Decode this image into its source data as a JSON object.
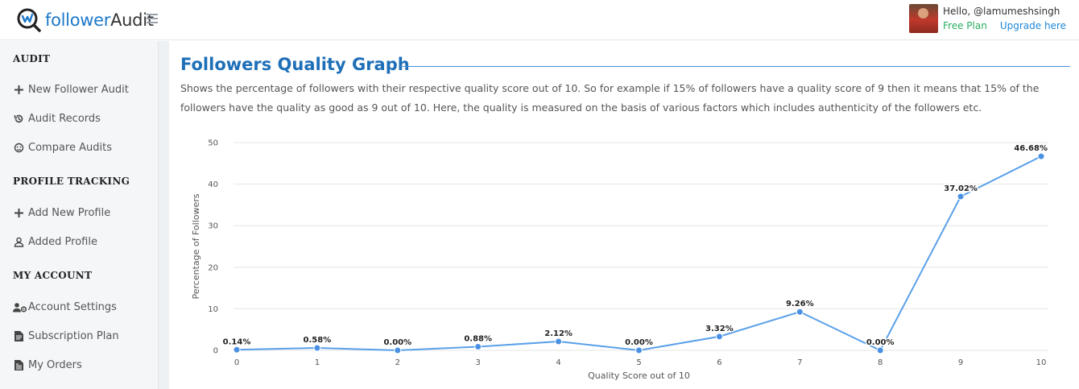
{
  "header": {
    "logo_text_part1": "follower",
    "logo_text_part2": "Audit",
    "greeting": "Hello, @lamumeshsingh",
    "plan": "Free Plan",
    "upgrade": "Upgrade here"
  },
  "sidebar": {
    "sections": [
      {
        "title": "AUDIT",
        "items": [
          {
            "label": "New Follower Audit",
            "icon": "plus-icon"
          },
          {
            "label": "Audit Records",
            "icon": "history-icon"
          },
          {
            "label": "Compare Audits",
            "icon": "compare-icon"
          }
        ]
      },
      {
        "title": "PROFILE TRACKING",
        "items": [
          {
            "label": "Add New Profile",
            "icon": "plus-icon"
          },
          {
            "label": "Added Profile",
            "icon": "user-icon"
          }
        ]
      },
      {
        "title": "MY ACCOUNT",
        "items": [
          {
            "label": "Account Settings",
            "icon": "user-gear-icon"
          },
          {
            "label": "Subscription Plan",
            "icon": "document-icon"
          },
          {
            "label": "My Orders",
            "icon": "invoice-icon"
          }
        ]
      }
    ]
  },
  "main": {
    "title": "Followers Quality Graph",
    "description": "Shows the percentage of followers with their respective quality score out of 10. So for example if 15% of followers have a quality score of 9 then it means that 15% of the followers have the quality as good as 9 out of 10. Here, the quality is measured on the basis of various factors which includes authenticity of the followers etc."
  },
  "chart_data": {
    "type": "line",
    "x": [
      0,
      1,
      2,
      3,
      4,
      5,
      6,
      7,
      8,
      9,
      10
    ],
    "values": [
      0.14,
      0.58,
      0.0,
      0.88,
      2.12,
      0.0,
      3.32,
      9.26,
      0.0,
      37.02,
      46.68
    ],
    "data_labels": [
      "0.14%",
      "0.58%",
      "0.00%",
      "0.88%",
      "2.12%",
      "0.00%",
      "3.32%",
      "9.26%",
      "0.00%",
      "37.02%",
      "46.68%"
    ],
    "xlabel": "Quality Score out of 10",
    "ylabel": "Percentage of Followers",
    "ylim": [
      0,
      50
    ],
    "yticks": [
      0,
      10,
      20,
      30,
      40,
      50
    ],
    "grid": true,
    "line_color": "#5aa0e8"
  }
}
